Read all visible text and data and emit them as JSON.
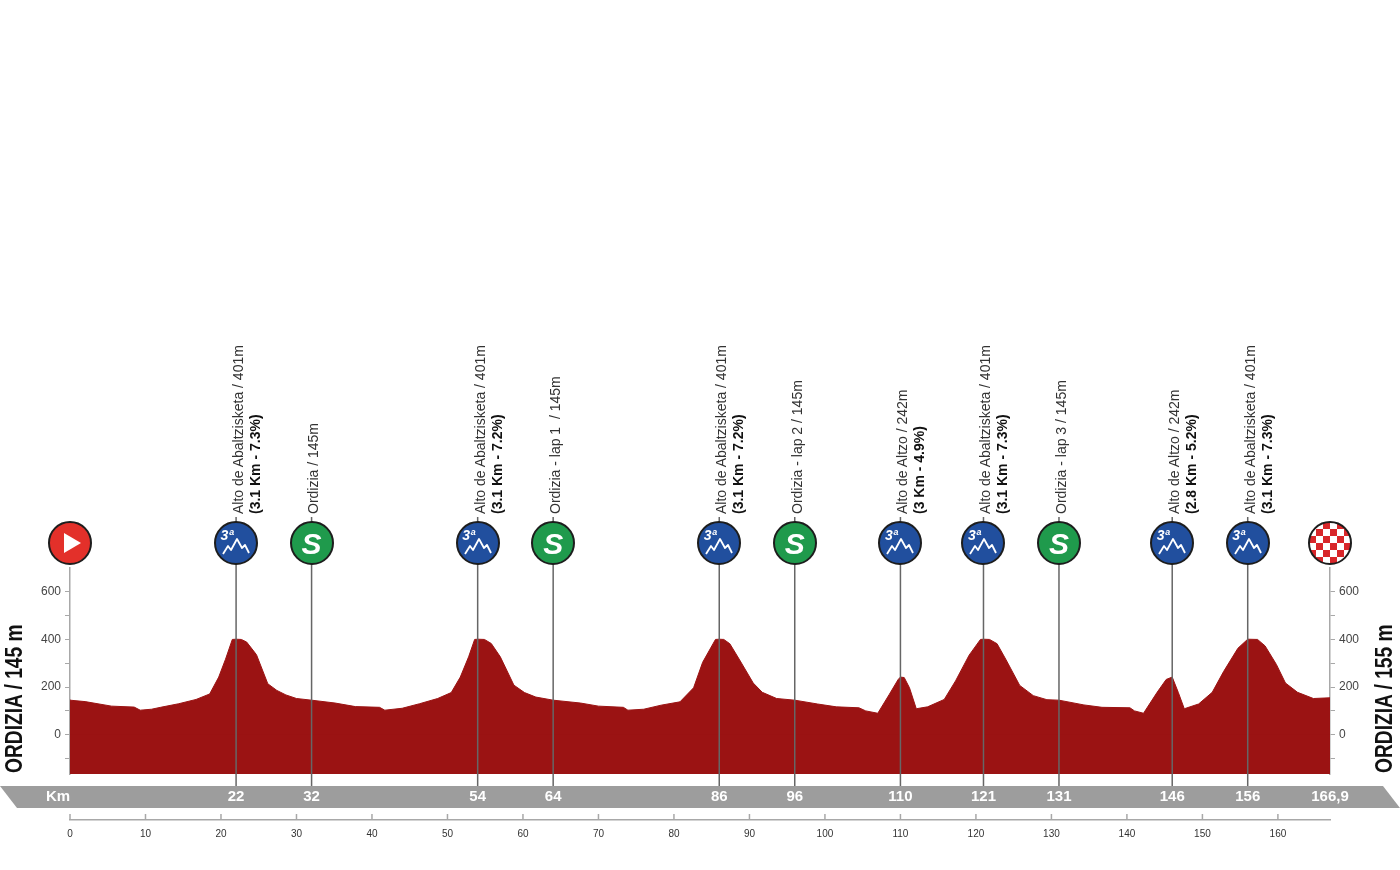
{
  "chart_data": {
    "type": "area",
    "x": [
      0,
      2,
      5.5,
      8.5,
      9.3,
      10.8,
      12,
      14.4,
      16.7,
      18.5,
      19.7,
      20.6,
      21.5,
      22,
      22.7,
      23.4,
      24.7,
      26.2,
      27.4,
      28.6,
      30,
      32,
      35.1,
      37.8,
      41,
      41.7,
      44,
      46.3,
      48.7,
      50.5,
      51.7,
      52.8,
      53.6,
      54,
      54.9,
      55.8,
      57,
      58.8,
      60.2,
      61.7,
      64,
      67.6,
      70,
      73.3,
      73.9,
      76,
      78.3,
      80.8,
      82.6,
      83.8,
      85.5,
      86,
      86.6,
      87.4,
      88.7,
      90.5,
      91.7,
      93.6,
      96,
      99,
      101.5,
      104.5,
      105.4,
      107,
      108.5,
      109.7,
      110,
      110.5,
      111.2,
      112.1,
      113.6,
      115.8,
      117.3,
      119.1,
      120.6,
      121,
      121.8,
      122.8,
      124,
      125.8,
      127.6,
      129.4,
      131,
      134.3,
      136.7,
      140.4,
      141,
      142.2,
      144,
      145.2,
      146,
      146.8,
      147.6,
      149.5,
      151.3,
      152.8,
      154.7,
      156,
      157.3,
      158.3,
      159.8,
      161,
      162.6,
      164.7,
      166.9
    ],
    "values": [
      145,
      139,
      120,
      116,
      103,
      107,
      115,
      130,
      148,
      171,
      242,
      317,
      400,
      401,
      400,
      389,
      336,
      214,
      186,
      167,
      152,
      145,
      133,
      118,
      115,
      103,
      111,
      130,
      152,
      177,
      242,
      327,
      400,
      401,
      400,
      383,
      327,
      208,
      177,
      158,
      145,
      133,
      120,
      115,
      103,
      107,
      124,
      138,
      197,
      304,
      400,
      401,
      400,
      382,
      314,
      217,
      178,
      152,
      145,
      129,
      117,
      113,
      100,
      90,
      168,
      232,
      242,
      240,
      197,
      109,
      117,
      148,
      226,
      334,
      400,
      401,
      400,
      382,
      314,
      207,
      164,
      147,
      145,
      125,
      115,
      113,
      100,
      90,
      178,
      232,
      242,
      178,
      109,
      129,
      178,
      265,
      363,
      401,
      400,
      373,
      295,
      217,
      178,
      152,
      155
    ],
    "color": "#9b1313",
    "marker": "none",
    "xlim": [
      0,
      166.9
    ],
    "xticks": [
      0,
      10,
      20,
      30,
      40,
      50,
      60,
      70,
      80,
      90,
      100,
      110,
      120,
      130,
      140,
      150,
      160
    ],
    "ylim": [
      -165,
      700
    ],
    "yticks": [
      {
        "value": -100,
        "label": null
      },
      0,
      {
        "value": 100,
        "label": null
      },
      200,
      {
        "value": 300,
        "label": null
      },
      400,
      {
        "value": 500,
        "label": null
      },
      600
    ],
    "y2lim": [
      -165,
      700
    ],
    "y2ticks": [
      {
        "value": -100,
        "label": null
      },
      0,
      {
        "value": 100,
        "label": null
      },
      200,
      {
        "value": 300,
        "label": null
      },
      400,
      {
        "value": 500,
        "label": null
      },
      600
    ],
    "x2lim": [
      0,
      166.9
    ],
    "x2label": "Km",
    "x2ticks": [
      22,
      32,
      54,
      64,
      86,
      96,
      110,
      121,
      131,
      146,
      156,
      {
        "value": 166.9,
        "label": "166,9"
      }
    ],
    "bands": [
      {
        "axis": "y",
        "from": -165,
        "to": 0,
        "color": "#9b1313"
      }
    ],
    "ref_lines": [
      {
        "axis": "x",
        "value": 22,
        "label": "Alto de Abaltzisketa / 401m\n(3.1 Km - 7.3%)",
        "color": "#666666"
      },
      {
        "axis": "x",
        "value": 32,
        "label": "Ordizia / 145m",
        "color": "#666666"
      },
      {
        "axis": "x",
        "value": 54,
        "label": "Alto de Abaltzisketa / 401m\n(3.1 Km - 7.2%)",
        "color": "#666666"
      },
      {
        "axis": "x",
        "value": 64,
        "label": "Ordizia - lap 1  / 145m",
        "color": "#666666"
      },
      {
        "axis": "x",
        "value": 86,
        "label": "Alto de Abaltzisketa / 401m\n(3.1 Km - 7.2%)",
        "color": "#666666"
      },
      {
        "axis": "x",
        "value": 96,
        "label": "Ordizia - lap 2 / 145m",
        "color": "#666666"
      },
      {
        "axis": "x",
        "value": 110,
        "label": "Alto de Altzo / 242m\n(3 Km - 4.9%)",
        "color": "#666666"
      },
      {
        "axis": "x",
        "value": 121,
        "label": "Alto de Abaltzisketa / 401m\n(3.1 Km - 7.3%)",
        "color": "#666666"
      },
      {
        "axis": "x",
        "value": 131,
        "label": "Ordizia - lap 3 / 145m",
        "color": "#666666"
      },
      {
        "axis": "x",
        "value": 146,
        "label": "Alto de Altzo / 242m\n(2.8 Km - 5.2%)",
        "color": "#666666"
      },
      {
        "axis": "x",
        "value": 156,
        "label": "Alto de Abaltzisketa / 401m\n(3.1 Km - 7.3%)",
        "color": "#666666"
      }
    ],
    "annotations": [
      "ORDIZIA / 145 m",
      "ORDIZIA / 155 m",
      "3ª",
      "S",
      "3ª",
      "S",
      "3ª",
      "S",
      "3ª",
      "3ª",
      "S",
      "3ª",
      "3ª"
    ]
  }
}
